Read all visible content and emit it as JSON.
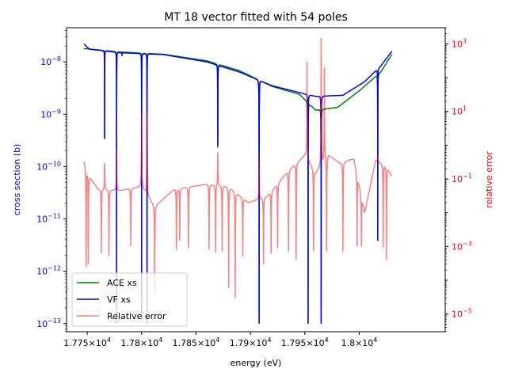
{
  "chart_data": {
    "type": "line",
    "title": "MT 18 vector fitted with 54 poles",
    "xlabel": "energy (eV)",
    "ylabel_left": "cross section (b)",
    "ylabel_right": "relative error",
    "xlim": [
      17731,
      18079
    ],
    "ylim_left": [
      7e-14,
      4.5e-08
    ],
    "ylim_right": [
      3e-06,
      3000
    ],
    "x_scale": "linear",
    "y_scale_left": "log",
    "y_scale_right": "log",
    "x_ticks": [
      {
        "value": 17750,
        "mantissa": "1.775",
        "exp": "4"
      },
      {
        "value": 17800,
        "mantissa": "1.78",
        "exp": "4"
      },
      {
        "value": 17850,
        "mantissa": "1.785",
        "exp": "4"
      },
      {
        "value": 17900,
        "mantissa": "1.79",
        "exp": "4"
      },
      {
        "value": 17950,
        "mantissa": "1.795",
        "exp": "4"
      },
      {
        "value": 18000,
        "mantissa": "1.8",
        "exp": "4"
      }
    ],
    "y_ticks_left": [
      {
        "value": 1e-13,
        "exp": "−13"
      },
      {
        "value": 1e-12,
        "exp": "−12"
      },
      {
        "value": 1e-11,
        "exp": "−11"
      },
      {
        "value": 1e-10,
        "exp": "−10"
      },
      {
        "value": 1e-09,
        "exp": "−9"
      },
      {
        "value": 1e-08,
        "exp": "−8"
      }
    ],
    "y_ticks_right": [
      {
        "value": 1e-05,
        "exp": "−5"
      },
      {
        "value": 0.001,
        "exp": "−3"
      },
      {
        "value": 0.1,
        "exp": "−1"
      },
      {
        "value": 10,
        "exp": "1"
      },
      {
        "value": 1000,
        "exp": "3"
      }
    ],
    "legend_position": "lower-left",
    "series": [
      {
        "name": "ACE xs",
        "axis": "left",
        "color": "#008000",
        "base": [
          [
            17747,
            1.8e-08
          ],
          [
            17780,
            1.55e-08
          ],
          [
            17820,
            1.4e-08
          ],
          [
            17860,
            1.05e-08
          ],
          [
            17890,
            6.8e-09
          ],
          [
            17920,
            3.4e-09
          ],
          [
            17945,
            2.4e-09
          ],
          [
            17960,
            1.2e-09
          ],
          [
            17980,
            1.35e-09
          ],
          [
            18000,
            2.8e-09
          ],
          [
            18020,
            6.5e-09
          ],
          [
            18030,
            1.4e-08
          ]
        ],
        "dips": [
          {
            "e": 17766,
            "min": 3.3e-10,
            "w": 0.12
          },
          {
            "e": 17777,
            "min": 1e-13,
            "w": 0.15
          },
          {
            "e": 17782,
            "min": 1.5e-08,
            "w": 0.12
          },
          {
            "e": 17800,
            "min": 8e-10,
            "w": 0.15
          },
          {
            "e": 17805,
            "min": 1e-12,
            "w": 0.15
          },
          {
            "e": 17870,
            "min": 2.3e-10,
            "w": 0.2
          },
          {
            "e": 17908,
            "min": 1e-13,
            "w": 0.25
          },
          {
            "e": 17953,
            "min": 1e-13,
            "w": 0.25
          },
          {
            "e": 17965,
            "min": 1e-13,
            "w": 0.25
          },
          {
            "e": 18017,
            "min": 3.8e-12,
            "w": 0.2
          }
        ]
      },
      {
        "name": "VF xs",
        "axis": "left",
        "color": "#0000ff",
        "base": [
          [
            17747,
            2.2e-08
          ],
          [
            17752,
            1.75e-08
          ],
          [
            17780,
            1.5e-08
          ],
          [
            17820,
            1.38e-08
          ],
          [
            17860,
            1e-08
          ],
          [
            17890,
            6.4e-09
          ],
          [
            17920,
            3.5e-09
          ],
          [
            17945,
            2.6e-09
          ],
          [
            17960,
            2.2e-09
          ],
          [
            17985,
            2.3e-09
          ],
          [
            18005,
            4.2e-09
          ],
          [
            18020,
            8.5e-09
          ],
          [
            18030,
            1.6e-08
          ]
        ],
        "dips": [
          {
            "e": 17766,
            "min": 3.5e-10,
            "w": 0.12
          },
          {
            "e": 17777,
            "min": 1e-13,
            "w": 0.15
          },
          {
            "e": 17782,
            "min": 1.3e-08,
            "w": 0.1
          },
          {
            "e": 17800,
            "min": 1.2e-13,
            "w": 0.15
          },
          {
            "e": 17805,
            "min": 1e-13,
            "w": 0.15
          },
          {
            "e": 17870,
            "min": 2.5e-10,
            "w": 0.2
          },
          {
            "e": 17908,
            "min": 1e-13,
            "w": 0.25
          },
          {
            "e": 17953,
            "min": 1e-13,
            "w": 0.25
          },
          {
            "e": 17965,
            "min": 1e-13,
            "w": 0.25
          },
          {
            "e": 18017,
            "min": 3.8e-12,
            "w": 0.2
          }
        ]
      },
      {
        "name": "Relative error",
        "axis": "right",
        "color": "#ff0000",
        "opacity": 0.5,
        "envelope": [
          [
            17747,
            0.35
          ],
          [
            17752,
            0.12
          ],
          [
            17760,
            0.05
          ],
          [
            17780,
            0.045
          ],
          [
            17800,
            0.06
          ],
          [
            17812,
            0.015
          ],
          [
            17830,
            0.05
          ],
          [
            17860,
            0.07
          ],
          [
            17880,
            0.06
          ],
          [
            17898,
            0.02
          ],
          [
            17915,
            0.03
          ],
          [
            17935,
            0.18
          ],
          [
            17950,
            0.5
          ],
          [
            17960,
            0.15
          ],
          [
            17972,
            0.5
          ],
          [
            17982,
            0.3
          ],
          [
            17995,
            0.4
          ],
          [
            18005,
            0.01
          ],
          [
            18015,
            0.35
          ],
          [
            18025,
            0.25
          ],
          [
            18030,
            0.12
          ]
        ],
        "spikes_down": [
          [
            17749,
            0.00025
          ],
          [
            17751,
            0.0003
          ],
          [
            17763,
            0.0006
          ],
          [
            17770,
            0.0005
          ],
          [
            17790,
            0.001
          ],
          [
            17812,
            4e-05
          ],
          [
            17832,
            0.0008
          ],
          [
            17835,
            0.0015
          ],
          [
            17843,
            0.0009
          ],
          [
            17862,
            0.0008
          ],
          [
            17868,
            0.0006
          ],
          [
            17874,
            0.0007
          ],
          [
            17880,
            6e-05
          ],
          [
            17886,
            3e-05
          ],
          [
            17893,
            0.0005
          ],
          [
            17912,
            0.0003
          ],
          [
            17919,
            0.0006
          ],
          [
            17925,
            0.0009
          ],
          [
            17935,
            0.0007
          ],
          [
            17942,
            0.0004
          ],
          [
            17958,
            0.0007
          ],
          [
            17970,
            0.0006
          ],
          [
            17985,
            0.0007
          ],
          [
            17998,
            0.001
          ],
          [
            18002,
            0.001
          ],
          [
            18022,
            0.0009
          ],
          [
            18025,
            0.0004
          ]
        ],
        "spikes_up": [
          [
            17766,
            0.3
          ],
          [
            17777,
            0.7
          ],
          [
            17800,
            8
          ],
          [
            17805,
            9
          ],
          [
            17870,
            0.6
          ],
          [
            17908,
            0.3
          ],
          [
            17952,
            300
          ],
          [
            17965,
            1500
          ],
          [
            17968,
            200
          ],
          [
            18017,
            0.5
          ]
        ]
      }
    ]
  }
}
